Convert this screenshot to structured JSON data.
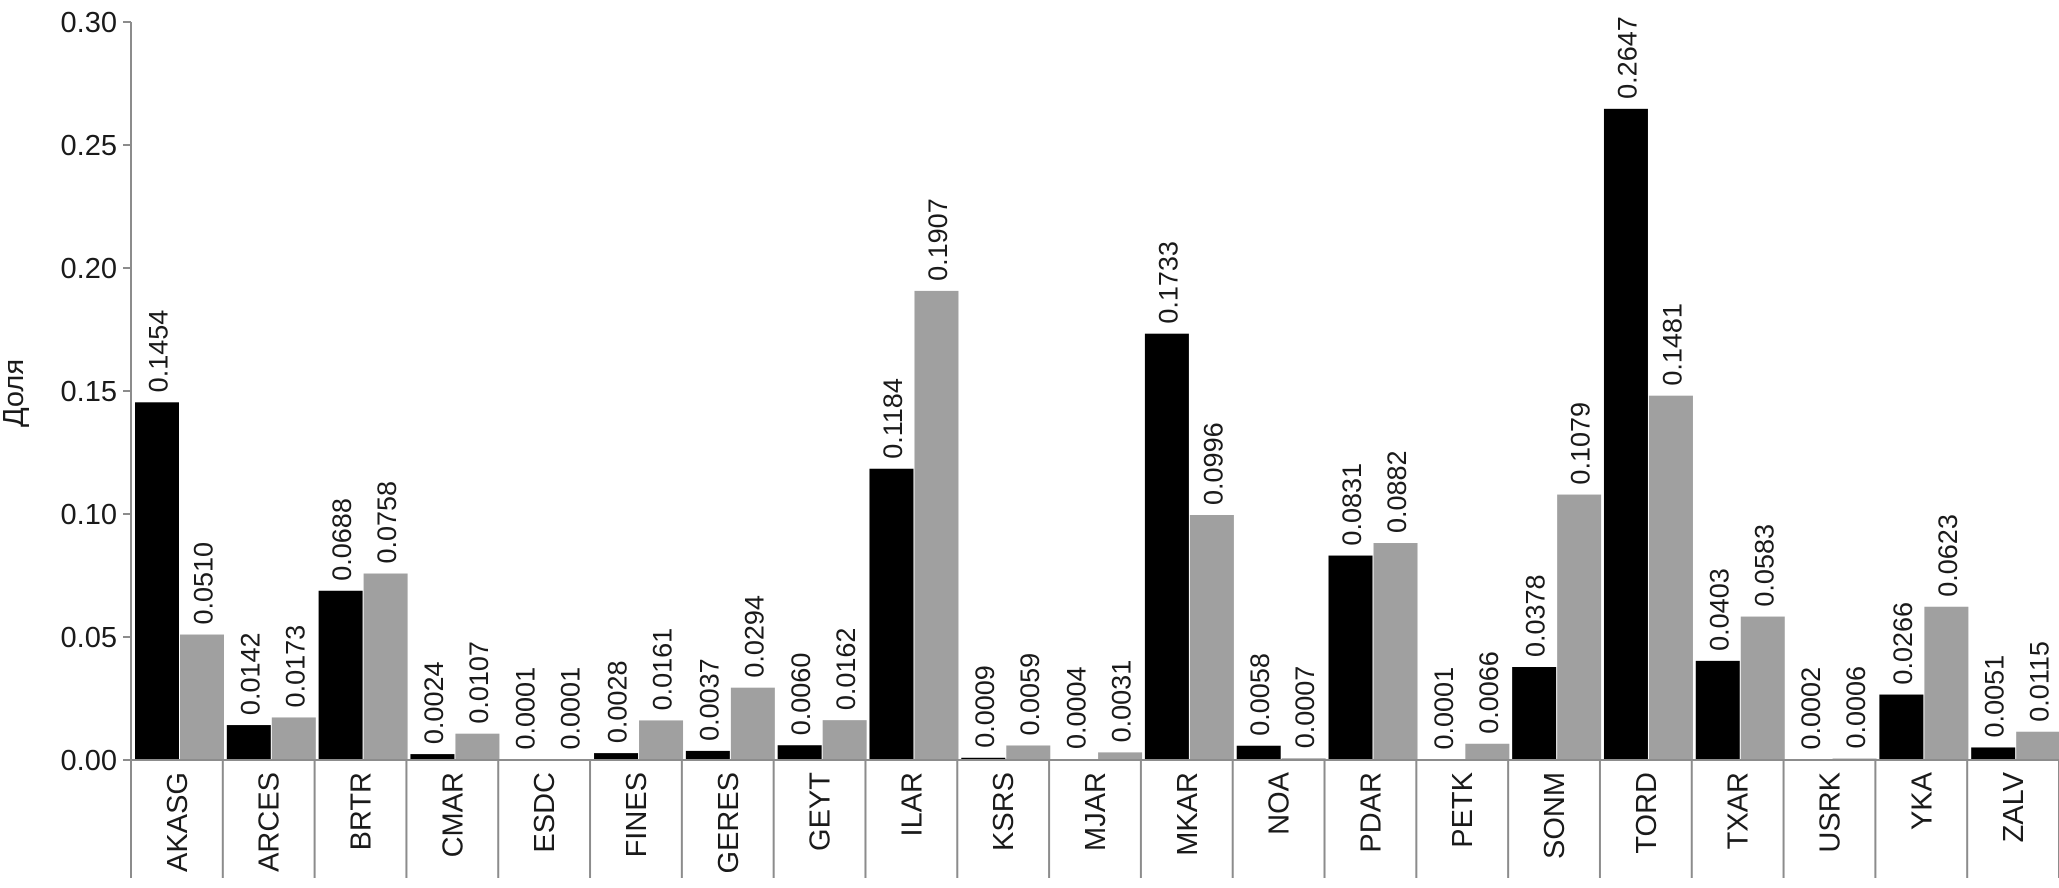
{
  "chart_data": {
    "type": "bar",
    "ylabel": "Доля",
    "ylim": [
      0,
      0.3
    ],
    "yticks": [
      "0.00",
      "0.05",
      "0.10",
      "0.15",
      "0.20",
      "0.25",
      "0.30"
    ],
    "yticks_values": [
      0,
      0.05,
      0.1,
      0.15,
      0.2,
      0.25,
      0.3
    ],
    "grid": false,
    "categories": [
      "AKASG",
      "ARCES",
      "BRTR",
      "CMAR",
      "ESDC",
      "FINES",
      "GERES",
      "GEYT",
      "ILAR",
      "KSRS",
      "MJAR",
      "MKAR",
      "NOA",
      "PDAR",
      "PETK",
      "SONM",
      "TORD",
      "TXAR",
      "USRK",
      "YKA",
      "ZALV"
    ],
    "series": [
      {
        "color": "#000000",
        "values": [
          0.1454,
          0.0142,
          0.0688,
          0.0024,
          0.0001,
          0.0028,
          0.0037,
          0.006,
          0.1184,
          0.0009,
          0.0004,
          0.1733,
          0.0058,
          0.0831,
          0.0001,
          0.0378,
          0.2647,
          0.0403,
          0.0002,
          0.0266,
          0.0051
        ],
        "labels": [
          "0.1454",
          "0.0142",
          "0.0688",
          "0.0024",
          "0.0001",
          "0.0028",
          "0.0037",
          "0.0060",
          "0.1184",
          "0.0009",
          "0.0004",
          "0.1733",
          "0.0058",
          "0.0831",
          "0.0001",
          "0.0378",
          "0.2647",
          "0.0403",
          "0.0002",
          "0.0266",
          "0.0051"
        ]
      },
      {
        "color": "#a0a0a0",
        "values": [
          0.051,
          0.0173,
          0.0758,
          0.0107,
          0.0001,
          0.0161,
          0.0294,
          0.0162,
          0.1907,
          0.0059,
          0.0031,
          0.0996,
          0.0007,
          0.0882,
          0.0066,
          0.1079,
          0.1481,
          0.0583,
          0.0006,
          0.0623,
          0.0115
        ],
        "labels": [
          "0.0510",
          "0.0173",
          "0.0758",
          "0.0107",
          "0.0001",
          "0.0161",
          "0.0294",
          "0.0162",
          "0.1907",
          "0.0059",
          "0.0031",
          "0.0996",
          "0.0007",
          "0.0882",
          "0.0066",
          "0.1079",
          "0.1481",
          "0.0583",
          "0.0006",
          "0.0623",
          "0.0115"
        ]
      }
    ]
  }
}
